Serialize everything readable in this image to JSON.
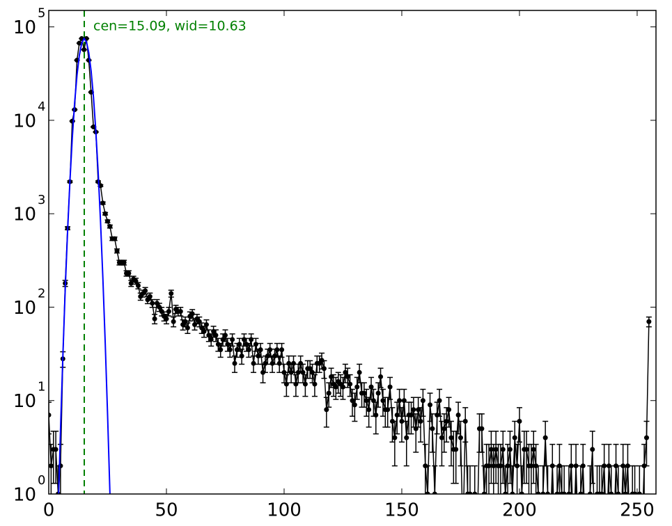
{
  "chart_data": {
    "type": "errorbar",
    "annotation": "cen=15.09, wid=10.63",
    "vline": {
      "x": 15.09,
      "color": "#008000"
    },
    "log_y": true,
    "xlim": [
      0,
      258
    ],
    "xticks": [
      0,
      50,
      100,
      150,
      200,
      250
    ],
    "ylim": [
      1,
      150000
    ],
    "yticks": [
      {
        "value": 1,
        "label": "10",
        "exponent": "0"
      },
      {
        "value": 10,
        "label": "10",
        "exponent": "1"
      },
      {
        "value": 100,
        "label": "10",
        "exponent": "2"
      },
      {
        "value": 1000,
        "label": "10",
        "exponent": "3"
      },
      {
        "value": 10000,
        "label": "10",
        "exponent": "4"
      },
      {
        "value": 100000,
        "label": "10",
        "exponent": "5"
      }
    ],
    "series": [
      {
        "kind": "data",
        "color": "#000000",
        "x": [
          0,
          1,
          2,
          3,
          4,
          5,
          6,
          7,
          8,
          9,
          10,
          11,
          12,
          13,
          14,
          15,
          16,
          17,
          18,
          19,
          20,
          21,
          22,
          23,
          24,
          25,
          26,
          27,
          28,
          29,
          30,
          31,
          32,
          33,
          34,
          35,
          36,
          37,
          38,
          39,
          40,
          41,
          42,
          43,
          44,
          45,
          46,
          47,
          48,
          49,
          50,
          51,
          52,
          53,
          54,
          55,
          56,
          57,
          58,
          59,
          60,
          61,
          62,
          63,
          64,
          65,
          66,
          67,
          68,
          69,
          70,
          71,
          72,
          73,
          74,
          75,
          76,
          77,
          78,
          79,
          80,
          81,
          82,
          83,
          84,
          85,
          86,
          87,
          88,
          89,
          90,
          91,
          92,
          93,
          94,
          95,
          96,
          97,
          98,
          99,
          100,
          101,
          102,
          103,
          104,
          105,
          106,
          107,
          108,
          109,
          110,
          111,
          112,
          113,
          114,
          115,
          116,
          117,
          118,
          119,
          120,
          121,
          122,
          123,
          124,
          125,
          126,
          127,
          128,
          129,
          130,
          131,
          132,
          133,
          134,
          135,
          136,
          137,
          138,
          139,
          140,
          141,
          142,
          143,
          144,
          145,
          146,
          147,
          148,
          149,
          150,
          151,
          152,
          153,
          154,
          155,
          156,
          157,
          158,
          159,
          160,
          161,
          162,
          163,
          164,
          165,
          166,
          167,
          168,
          169,
          170,
          171,
          172,
          173,
          174,
          175,
          176,
          177,
          178,
          179,
          180,
          181,
          182,
          183,
          184,
          185,
          186,
          187,
          188,
          189,
          190,
          191,
          192,
          193,
          194,
          195,
          196,
          197,
          198,
          199,
          200,
          201,
          202,
          203,
          204,
          205,
          206,
          207,
          208,
          209,
          210,
          211,
          212,
          213,
          214,
          215,
          216,
          217,
          218,
          219,
          220,
          221,
          222,
          223,
          224,
          225,
          226,
          227,
          228,
          229,
          230,
          231,
          232,
          233,
          234,
          235,
          236,
          237,
          238,
          239,
          240,
          241,
          242,
          243,
          244,
          245,
          246,
          247,
          248,
          249,
          250,
          251,
          252,
          253,
          254,
          255
        ],
        "values": [
          7,
          2,
          3,
          3,
          1,
          2,
          28,
          180,
          700,
          2200,
          9800,
          13000,
          44000,
          67000,
          75000,
          57000,
          75000,
          44000,
          20000,
          8500,
          7500,
          2200,
          2000,
          1300,
          1000,
          830,
          730,
          540,
          540,
          400,
          300,
          300,
          300,
          230,
          230,
          180,
          200,
          190,
          170,
          130,
          140,
          150,
          120,
          130,
          110,
          75,
          110,
          100,
          90,
          80,
          75,
          90,
          140,
          70,
          95,
          90,
          90,
          65,
          70,
          60,
          80,
          85,
          65,
          75,
          70,
          60,
          55,
          65,
          50,
          45,
          55,
          50,
          40,
          35,
          45,
          50,
          40,
          35,
          45,
          25,
          35,
          40,
          30,
          45,
          40,
          35,
          45,
          25,
          40,
          30,
          35,
          20,
          25,
          30,
          35,
          25,
          30,
          35,
          25,
          35,
          20,
          15,
          25,
          20,
          25,
          15,
          20,
          25,
          20,
          15,
          22,
          22,
          20,
          15,
          25,
          25,
          27,
          22,
          8,
          12,
          18,
          15,
          14,
          16,
          15,
          14,
          20,
          18,
          15,
          10,
          9,
          14,
          20,
          12,
          12,
          10,
          8,
          14,
          10,
          7,
          12,
          18,
          10,
          8,
          8,
          14,
          6,
          4,
          7,
          10,
          6,
          10,
          4,
          7,
          7,
          8,
          5,
          8,
          6,
          10,
          2,
          1,
          9,
          5,
          1,
          7,
          10,
          4,
          5,
          6,
          8,
          4,
          3,
          3,
          7,
          4,
          0,
          6,
          1,
          1,
          0,
          1,
          0,
          5,
          5,
          1,
          2,
          2,
          3,
          2,
          3,
          2,
          2,
          3,
          1,
          2,
          3,
          1,
          4,
          2,
          6,
          1,
          3,
          3,
          2,
          2,
          3,
          2,
          1,
          0,
          1,
          4,
          1,
          0,
          2,
          0,
          1,
          2,
          1,
          1,
          0,
          1,
          2,
          0,
          2,
          0,
          1,
          2,
          0,
          0,
          1,
          3,
          0,
          1,
          1,
          1,
          2,
          0,
          2,
          1,
          0,
          2,
          1,
          0,
          2,
          1,
          2,
          0,
          1,
          1,
          0,
          1,
          0,
          2,
          4,
          70
        ],
        "errors": [
          2.6,
          1.4,
          1.7,
          1.7,
          1,
          1.4,
          5.3,
          13.4,
          26.5,
          46.9,
          99,
          114,
          210,
          259,
          274,
          239,
          274,
          210,
          141,
          92.2,
          86.6,
          46.9,
          44.7,
          36.1,
          31.6,
          28.8,
          27,
          23.2,
          23.2,
          20,
          17.3,
          17.3,
          17.3,
          15.2,
          15.2,
          13.4,
          14.1,
          13.8,
          13,
          11.4,
          11.8,
          12.2,
          11,
          11.4,
          10.5,
          8.7,
          10.5,
          10,
          9.5,
          8.9,
          8.7,
          9.5,
          11.8,
          8.4,
          9.7,
          9.5,
          9.5,
          8.1,
          8.4,
          7.7,
          8.9,
          9.2,
          8.1,
          8.7,
          8.4,
          7.7,
          7.4,
          8.1,
          7.1,
          6.7,
          7.4,
          7.1,
          6.3,
          5.9,
          6.7,
          7.1,
          6.3,
          5.9,
          6.7,
          5,
          5.9,
          6.3,
          5.5,
          6.7,
          6.3,
          5.9,
          6.7,
          5,
          6.3,
          5.5,
          5.9,
          4.5,
          5,
          5.5,
          5.9,
          5,
          5.5,
          5.9,
          5,
          5.9,
          4.5,
          3.9,
          5,
          4.5,
          5,
          3.9,
          4.5,
          5,
          4.5,
          3.9,
          4.7,
          4.7,
          4.5,
          3.9,
          5,
          5,
          5.2,
          4.7,
          2.8,
          3.5,
          4.2,
          3.9,
          3.7,
          4,
          3.9,
          3.7,
          4.5,
          4.2,
          3.9,
          3.2,
          3,
          3.7,
          4.5,
          3.5,
          3.5,
          3.2,
          2.8,
          3.7,
          3.2,
          2.6,
          3.5,
          4.2,
          3.2,
          2.8,
          2.8,
          3.7,
          2.4,
          2,
          2.6,
          3.2,
          2.4,
          3.2,
          2,
          2.6,
          2.6,
          2.8,
          2.2,
          2.8,
          2.4,
          3.2,
          1.4,
          1,
          3,
          2.2,
          1,
          2.6,
          3.2,
          2,
          2.2,
          2.4,
          2.8,
          2,
          1.7,
          1.7,
          2.6,
          2,
          0,
          2.4,
          1,
          1,
          0,
          1,
          0,
          2.2,
          2.2,
          1,
          1.4,
          1.4,
          1.7,
          1.4,
          1.7,
          1.4,
          1.4,
          1.7,
          1,
          1.4,
          1.7,
          1,
          2,
          1.4,
          2.4,
          1,
          1.7,
          1.7,
          1.4,
          1.4,
          1.7,
          1.4,
          1,
          0,
          1,
          2,
          1,
          0,
          1.4,
          0,
          1,
          1.4,
          1,
          1,
          0,
          1,
          1.4,
          0,
          1.4,
          0,
          1,
          1.4,
          0,
          0,
          1,
          1.7,
          0,
          1,
          1,
          1,
          1.4,
          0,
          1.4,
          1,
          0,
          1.4,
          1,
          0,
          1.4,
          1,
          1.4,
          0,
          1,
          1,
          0,
          1,
          0,
          1.4,
          2,
          8.4
        ]
      },
      {
        "kind": "fit",
        "color": "#0000ff",
        "x": [
          4,
          5,
          6,
          7,
          8,
          9,
          10,
          11,
          12,
          13,
          14,
          15,
          16,
          17,
          18,
          19,
          20,
          21,
          22,
          23,
          24,
          25,
          26
        ],
        "values": [
          0.67,
          4.9,
          30,
          155,
          648,
          2240,
          6470,
          15450,
          30450,
          49600,
          67000,
          74950,
          69400,
          53100,
          33700,
          17700,
          7660,
          2770,
          825,
          203,
          41,
          7,
          1
        ]
      }
    ]
  }
}
